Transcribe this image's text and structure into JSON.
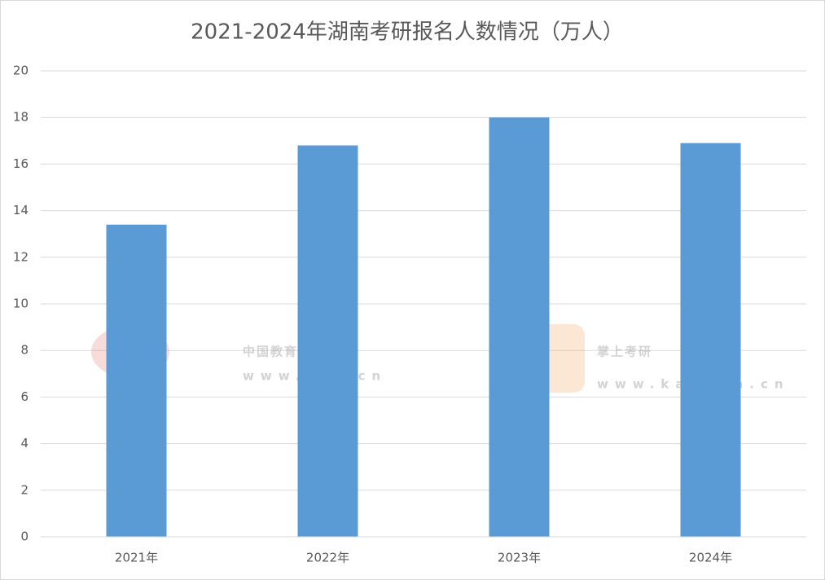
{
  "chart_data": {
    "type": "bar",
    "title": "2021-2024年湖南考研报名人数情况（万人）",
    "categories": [
      "2021年",
      "2022年",
      "2023年",
      "2024年"
    ],
    "values": [
      13.4,
      16.8,
      18.0,
      16.9
    ],
    "color": "#5b9bd5",
    "ylim": [
      0,
      20
    ],
    "yticks": [
      0,
      2,
      4,
      6,
      8,
      10,
      12,
      14,
      16,
      18,
      20
    ],
    "grid": true
  },
  "watermarks": [
    "中国教育在线",
    "www.eol.cn",
    "掌上考研",
    "www.kaoyan.cn"
  ]
}
